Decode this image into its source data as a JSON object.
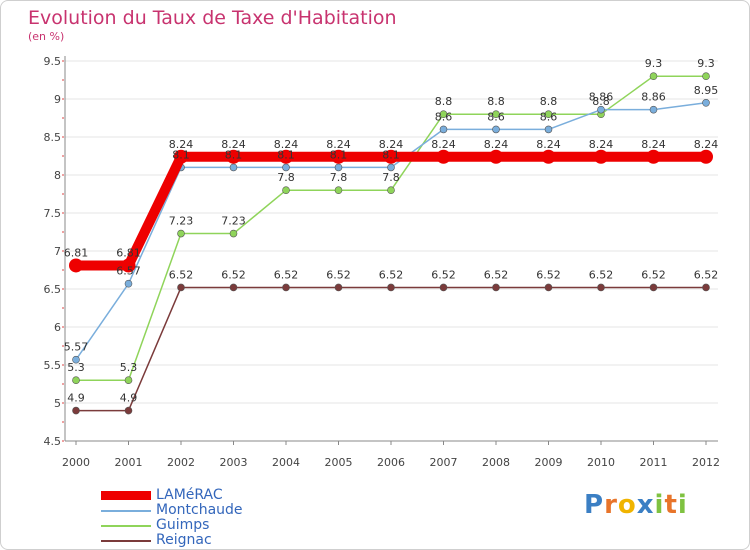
{
  "title": "Evolution du Taux de Taxe d'Habitation",
  "subtitle": "(en %)",
  "logo": {
    "letters": [
      "P",
      "r",
      "o",
      "x",
      "i",
      "t",
      "i"
    ],
    "colors": [
      "#3b7fc4",
      "#e8742a",
      "#f0b400",
      "#3b7fc4",
      "#7fc241",
      "#e8742a",
      "#7fc241"
    ]
  },
  "chart_data": {
    "type": "line",
    "title": "Evolution du Taux de Taxe d'Habitation",
    "ylabel": "(en %)",
    "xlabel": "",
    "ylim": [
      4.5,
      9.5
    ],
    "yticks": [
      "4.5",
      "5",
      "5.5",
      "6",
      "6.5",
      "7",
      "7.5",
      "8",
      "8.5",
      "9",
      "9.5"
    ],
    "categories": [
      "2000",
      "2001",
      "2002",
      "2003",
      "2004",
      "2005",
      "2006",
      "2007",
      "2008",
      "2009",
      "2010",
      "2011",
      "2012"
    ],
    "grid": "horizontal",
    "legend_position": "bottom-left",
    "series": [
      {
        "name": "Reignac",
        "color": "#7b3b3b",
        "values": [
          4.9,
          4.9,
          6.52,
          6.52,
          6.52,
          6.52,
          6.52,
          6.52,
          6.52,
          6.52,
          6.52,
          6.52,
          6.52
        ],
        "labels": [
          "4.9",
          "4.9",
          "6.52",
          "6.52",
          "6.52",
          "6.52",
          "6.52",
          "6.52",
          "6.52",
          "6.52",
          "6.52",
          "6.52",
          "6.52"
        ]
      },
      {
        "name": "Guimps",
        "color": "#8fd45a",
        "values": [
          5.3,
          5.3,
          7.23,
          7.23,
          7.8,
          7.8,
          7.8,
          8.8,
          8.8,
          8.8,
          8.8,
          9.3,
          9.3
        ],
        "labels": [
          "5.3",
          "5.3",
          "7.23",
          "7.23",
          "7.8",
          "7.8",
          "7.8",
          "8.8",
          "8.8",
          "8.8",
          "8.8",
          "9.3",
          "9.3"
        ]
      },
      {
        "name": "Montchaude",
        "color": "#7aaedc",
        "values": [
          5.57,
          6.57,
          8.1,
          8.1,
          8.1,
          8.1,
          8.1,
          8.6,
          8.6,
          8.6,
          8.86,
          8.86,
          8.95
        ],
        "labels": [
          "5.57",
          "6.57",
          "8.1",
          "8.1",
          "8.1",
          "8.1",
          "8.1",
          "8.6",
          "8.6",
          "8.6",
          "8.86",
          "8.86",
          "8.95"
        ]
      },
      {
        "name": "LAMéRAC",
        "color": "#ee0000",
        "values": [
          6.81,
          6.81,
          8.24,
          8.24,
          8.24,
          8.24,
          8.24,
          8.24,
          8.24,
          8.24,
          8.24,
          8.24,
          8.24
        ],
        "labels": [
          "6.81",
          "6.81",
          "8.24",
          "8.24",
          "8.24",
          "8.24",
          "8.24",
          "8.24",
          "8.24",
          "8.24",
          "8.24",
          "8.24",
          "8.24"
        ]
      }
    ],
    "legend": [
      "LAMéRAC",
      "Montchaude",
      "Guimps",
      "Reignac"
    ]
  }
}
